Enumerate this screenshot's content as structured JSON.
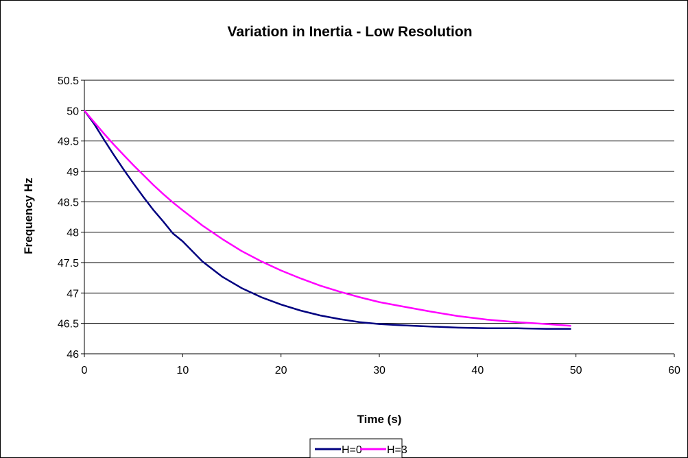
{
  "chart_data": {
    "type": "line",
    "title": "Variation in Inertia - Low Resolution",
    "xlabel": "Time (s)",
    "ylabel": "Frequency Hz",
    "xlim": [
      0,
      60
    ],
    "ylim": [
      46,
      50.5
    ],
    "xticks": [
      "0",
      "10",
      "20",
      "30",
      "40",
      "50",
      "60"
    ],
    "yticks": [
      "46",
      "46.5",
      "47",
      "47.5",
      "48",
      "48.5",
      "49",
      "49.5",
      "50",
      "50.5"
    ],
    "grid": "horizontal major gridlines",
    "legend_position": "bottom",
    "series": [
      {
        "name": "H=0",
        "color": "#000080",
        "x": [
          0,
          1,
          2,
          3,
          4,
          5,
          6,
          7,
          8,
          9,
          10,
          12,
          14,
          16,
          18,
          20,
          22,
          24,
          26,
          28,
          30,
          32,
          35,
          38,
          41,
          44,
          47,
          49.5
        ],
        "y": [
          50,
          49.78,
          49.52,
          49.27,
          49.03,
          48.8,
          48.58,
          48.37,
          48.18,
          47.98,
          47.85,
          47.52,
          47.27,
          47.08,
          46.93,
          46.81,
          46.71,
          46.63,
          46.57,
          46.52,
          46.49,
          46.47,
          46.45,
          46.43,
          46.42,
          46.42,
          46.41,
          46.41
        ]
      },
      {
        "name": "H=3",
        "color": "#FF00FF",
        "x": [
          0,
          1,
          2,
          3,
          4,
          5,
          6,
          7,
          8,
          9,
          10,
          12,
          14,
          16,
          18,
          20,
          22,
          24,
          26,
          28,
          30,
          32,
          35,
          38,
          41,
          44,
          47,
          49.5
        ],
        "y": [
          50,
          49.81,
          49.62,
          49.44,
          49.27,
          49.1,
          48.94,
          48.78,
          48.63,
          48.49,
          48.36,
          48.11,
          47.89,
          47.69,
          47.52,
          47.37,
          47.24,
          47.12,
          47.02,
          46.93,
          46.85,
          46.79,
          46.7,
          46.62,
          46.56,
          46.52,
          46.49,
          46.46
        ]
      }
    ]
  }
}
